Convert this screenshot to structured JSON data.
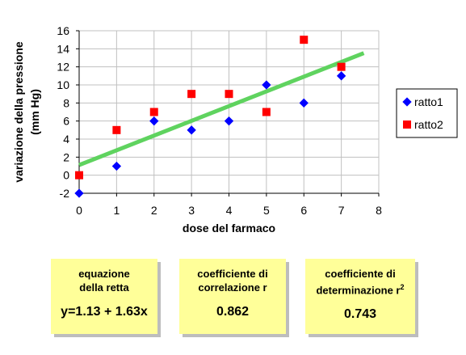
{
  "chart_data": {
    "type": "scatter",
    "xlabel": "dose del farmaco",
    "ylabel": [
      "variazione della pressione",
      "(mm Hg)"
    ],
    "xlim": [
      0,
      8
    ],
    "ylim": [
      -2,
      16
    ],
    "x_ticks": [
      "0",
      "1",
      "2",
      "3",
      "4",
      "5",
      "6",
      "7",
      "8"
    ],
    "y_ticks": [
      "-2",
      "0",
      "2",
      "4",
      "6",
      "8",
      "10",
      "12",
      "14",
      "16"
    ],
    "grid": true,
    "legend_position": "right",
    "series": [
      {
        "name": "ratto1",
        "marker": "diamond",
        "color": "#0000ff",
        "x": [
          0,
          1,
          2,
          3,
          4,
          5,
          6,
          7
        ],
        "y": [
          -2,
          1,
          6,
          5,
          6,
          10,
          8,
          11
        ]
      },
      {
        "name": "ratto2",
        "marker": "square",
        "color": "#ff0000",
        "x": [
          0,
          1,
          2,
          3,
          4,
          5,
          6,
          7
        ],
        "y": [
          0,
          5,
          7,
          9,
          9,
          7,
          15,
          12
        ]
      }
    ],
    "trendline": {
      "intercept": 1.13,
      "slope": 1.63,
      "x_range": [
        0,
        7.6
      ],
      "color": "#5fd35f"
    }
  },
  "boxes": {
    "equation": {
      "title_1": "equazione",
      "title_2": "della retta",
      "value": "y=1.13 + 1.63x"
    },
    "correlation": {
      "title_1": "coefficiente di",
      "title_2": "correlazione r",
      "value": "0.862"
    },
    "determination": {
      "title_1": "coefficiente di",
      "title_2": "determinazione r",
      "title_2_sup": "2",
      "value": "0.743"
    }
  }
}
